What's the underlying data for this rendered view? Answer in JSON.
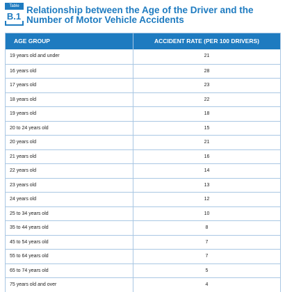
{
  "badge": {
    "tab_label": "Table",
    "number": "B.1"
  },
  "title": "Relationship between the Age of the Driver and the Number of Motor Vehicle Accidents",
  "chart_data": {
    "type": "table",
    "columns": [
      "AGE GROUP",
      "ACCIDENT RATE (PER 100 DRIVERS)"
    ],
    "rows": [
      [
        "19 years old and under",
        "21"
      ],
      [
        "16 years old",
        "28"
      ],
      [
        "17 years old",
        "23"
      ],
      [
        "18 years old",
        "22"
      ],
      [
        "19 years old",
        "18"
      ],
      [
        "20 to 24 years old",
        "15"
      ],
      [
        "20 years old",
        "21"
      ],
      [
        "21 years old",
        "16"
      ],
      [
        "22 years old",
        "14"
      ],
      [
        "23 years old",
        "13"
      ],
      [
        "24 years old",
        "12"
      ],
      [
        "25 to 34 years old",
        "10"
      ],
      [
        "35 to 44 years old",
        "8"
      ],
      [
        "45 to 54 years old",
        "7"
      ],
      [
        "55 to 64 years old",
        "7"
      ],
      [
        "65 to 74 years old",
        "5"
      ],
      [
        "75 years old and over",
        "4"
      ]
    ]
  }
}
